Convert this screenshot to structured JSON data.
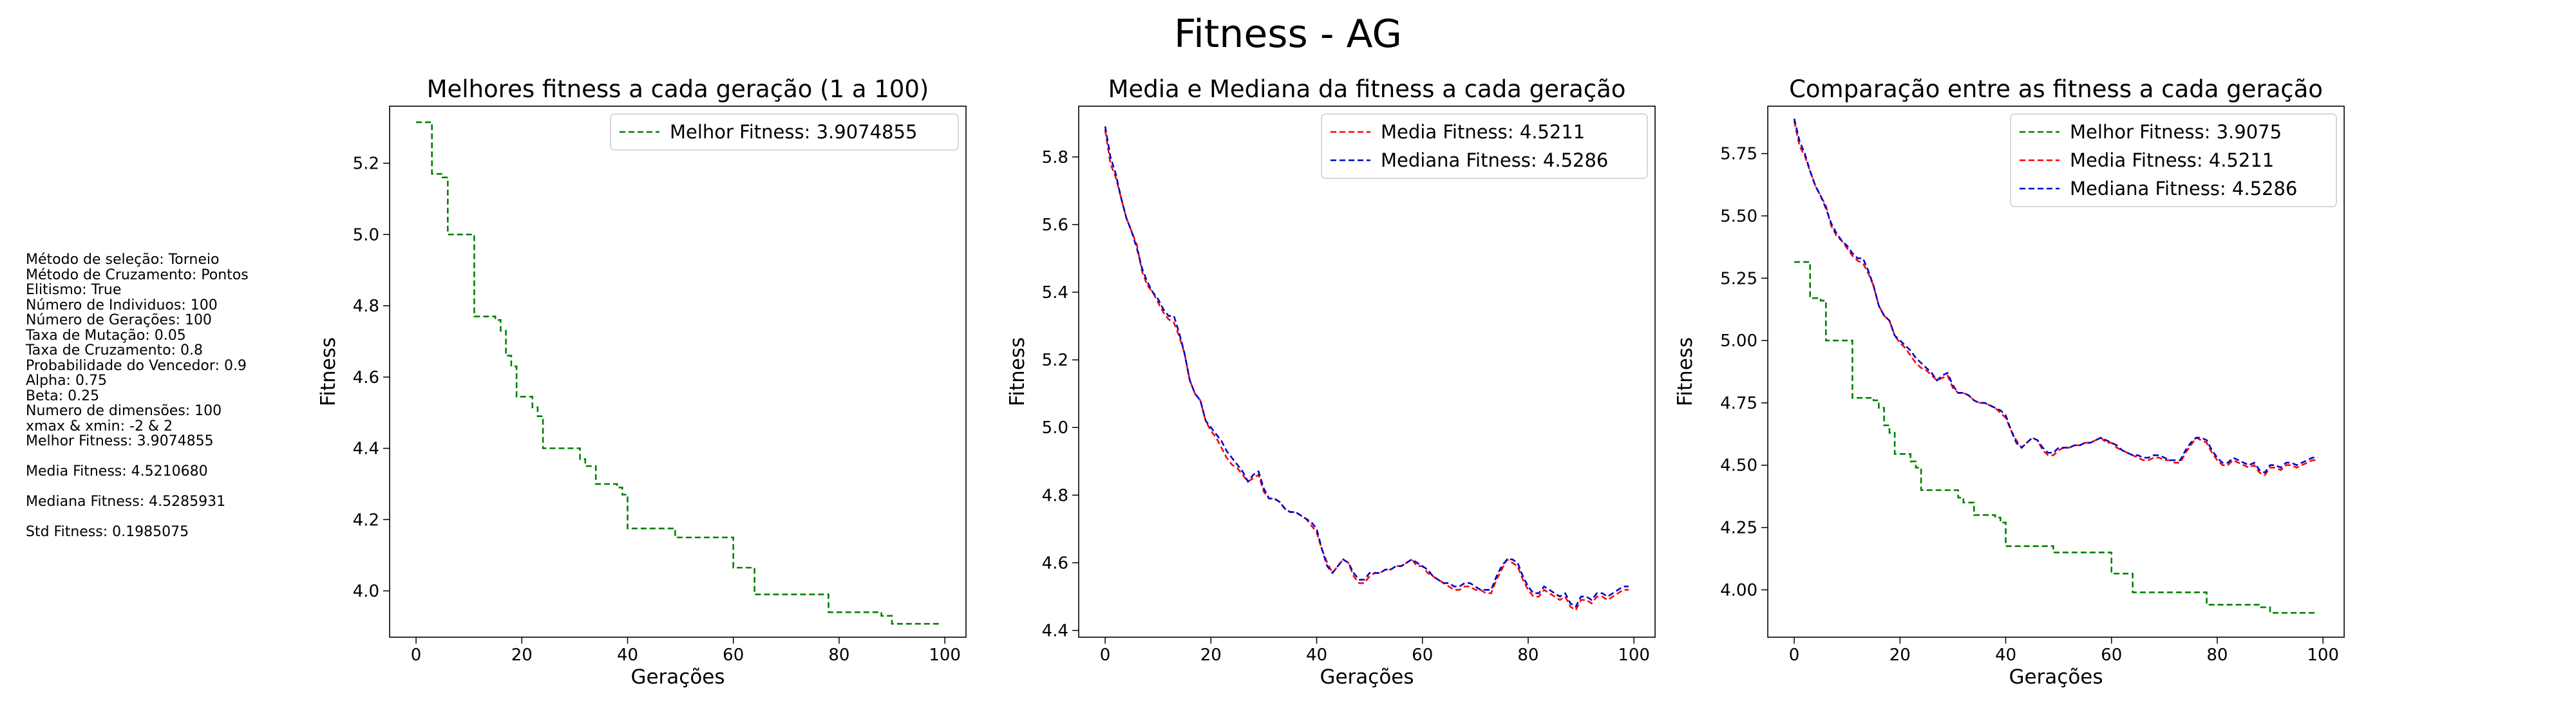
{
  "suptitle": "Fitness - AG",
  "params": {
    "lines": [
      "Método de seleção: Torneio",
      "Método de Cruzamento: Pontos",
      "Elitismo: True",
      "Número de Individuos: 100",
      "Número de Gerações: 100",
      "Taxa de Mutação: 0.05",
      "Taxa de Cruzamento: 0.8",
      "Probabilidade do Vencedor: 0.9",
      "Alpha: 0.75",
      "Beta: 0.25",
      "Numero de dimensões: 100",
      "xmax & xmin: -2 & 2",
      "Melhor Fitness: 3.9074855",
      "",
      "Media Fitness: 4.5210680",
      "",
      "Mediana Fitness: 4.5285931",
      "",
      "Std Fitness: 0.1985075"
    ]
  },
  "colors": {
    "best": "#008000",
    "mean": "#ff0000",
    "median": "#0000cc"
  },
  "chart_data": [
    {
      "type": "line",
      "title": "Melhores fitness a cada geração (1 a 100)",
      "xlabel": "Gerações",
      "ylabel": "Fitness",
      "xlim": [
        -5,
        104
      ],
      "ylim": [
        3.87,
        5.36
      ],
      "xticks": [
        "0",
        "20",
        "40",
        "60",
        "80",
        "100"
      ],
      "xtick_values": [
        0,
        20,
        40,
        60,
        80,
        100
      ],
      "yticks": [
        "4.0",
        "4.2",
        "4.4",
        "4.6",
        "4.8",
        "5.0",
        "5.2"
      ],
      "ytick_values": [
        4.0,
        4.2,
        4.4,
        4.6,
        4.8,
        5.0,
        5.2
      ],
      "legend_position": "top-right",
      "series": [
        {
          "name": "Melhor Fitness: 3.9074855",
          "color": "#008000",
          "key": "best"
        }
      ]
    },
    {
      "type": "line",
      "title": "Media e Mediana da fitness a cada geração",
      "xlabel": "Gerações",
      "ylabel": "Fitness",
      "xlim": [
        -5,
        104
      ],
      "ylim": [
        4.38,
        5.95
      ],
      "xticks": [
        "0",
        "20",
        "40",
        "60",
        "80",
        "100"
      ],
      "xtick_values": [
        0,
        20,
        40,
        60,
        80,
        100
      ],
      "yticks": [
        "4.4",
        "4.6",
        "4.8",
        "5.0",
        "5.2",
        "5.4",
        "5.6",
        "5.8"
      ],
      "ytick_values": [
        4.4,
        4.6,
        4.8,
        5.0,
        5.2,
        5.4,
        5.6,
        5.8
      ],
      "legend_position": "top-right",
      "series": [
        {
          "name": "Media Fitness: 4.5211",
          "color": "#ff0000",
          "key": "mean"
        },
        {
          "name": "Mediana Fitness: 4.5286",
          "color": "#0000cc",
          "key": "median"
        }
      ]
    },
    {
      "type": "line",
      "title": "Comparação entre as fitness a cada geração",
      "xlabel": "Gerações",
      "ylabel": "Fitness",
      "xlim": [
        -5,
        104
      ],
      "ylim": [
        3.81,
        5.94
      ],
      "xticks": [
        "0",
        "20",
        "40",
        "60",
        "80",
        "100"
      ],
      "xtick_values": [
        0,
        20,
        40,
        60,
        80,
        100
      ],
      "yticks": [
        "4.00",
        "4.25",
        "4.50",
        "4.75",
        "5.00",
        "5.25",
        "5.50",
        "5.75"
      ],
      "ytick_values": [
        4.0,
        4.25,
        4.5,
        4.75,
        5.0,
        5.25,
        5.5,
        5.75
      ],
      "legend_position": "top-right",
      "series": [
        {
          "name": "Melhor Fitness: 3.9075",
          "color": "#008000",
          "key": "best"
        },
        {
          "name": "Media Fitness: 4.5211",
          "color": "#ff0000",
          "key": "mean"
        },
        {
          "name": "Mediana Fitness: 4.5286",
          "color": "#0000cc",
          "key": "median"
        }
      ]
    }
  ],
  "series_values": {
    "x": [
      0,
      1,
      2,
      3,
      4,
      5,
      6,
      7,
      8,
      9,
      10,
      11,
      12,
      13,
      14,
      15,
      16,
      17,
      18,
      19,
      20,
      21,
      22,
      23,
      24,
      25,
      26,
      27,
      28,
      29,
      30,
      31,
      32,
      33,
      34,
      35,
      36,
      37,
      38,
      39,
      40,
      41,
      42,
      43,
      44,
      45,
      46,
      47,
      48,
      49,
      50,
      51,
      52,
      53,
      54,
      55,
      56,
      57,
      58,
      59,
      60,
      61,
      62,
      63,
      64,
      65,
      66,
      67,
      68,
      69,
      70,
      71,
      72,
      73,
      74,
      75,
      76,
      77,
      78,
      79,
      80,
      81,
      82,
      83,
      84,
      85,
      86,
      87,
      88,
      89,
      90,
      91,
      92,
      93,
      94,
      95,
      96,
      97,
      98,
      99
    ],
    "best": [
      5.315,
      5.315,
      5.315,
      5.17,
      5.17,
      5.16,
      5.0,
      5.0,
      5.0,
      5.0,
      5.0,
      4.77,
      4.77,
      4.77,
      4.77,
      4.76,
      4.73,
      4.66,
      4.63,
      4.545,
      4.545,
      4.545,
      4.515,
      4.49,
      4.4,
      4.4,
      4.4,
      4.4,
      4.4,
      4.4,
      4.4,
      4.37,
      4.35,
      4.35,
      4.3,
      4.3,
      4.3,
      4.3,
      4.29,
      4.27,
      4.175,
      4.175,
      4.175,
      4.175,
      4.175,
      4.175,
      4.175,
      4.175,
      4.175,
      4.15,
      4.15,
      4.15,
      4.15,
      4.15,
      4.15,
      4.15,
      4.15,
      4.15,
      4.15,
      4.15,
      4.065,
      4.065,
      4.065,
      4.065,
      3.99,
      3.99,
      3.99,
      3.99,
      3.99,
      3.99,
      3.99,
      3.99,
      3.99,
      3.99,
      3.99,
      3.99,
      3.99,
      3.99,
      3.94,
      3.94,
      3.94,
      3.94,
      3.94,
      3.94,
      3.94,
      3.94,
      3.94,
      3.94,
      3.93,
      3.93,
      3.9075,
      3.9075,
      3.9075,
      3.9075,
      3.9075,
      3.9075,
      3.9075,
      3.9075,
      3.9075,
      3.9075
    ],
    "mean": [
      5.88,
      5.78,
      5.74,
      5.68,
      5.62,
      5.58,
      5.54,
      5.46,
      5.42,
      5.4,
      5.37,
      5.34,
      5.32,
      5.31,
      5.27,
      5.22,
      5.14,
      5.1,
      5.08,
      5.02,
      4.99,
      4.97,
      4.94,
      4.91,
      4.89,
      4.88,
      4.86,
      4.84,
      4.85,
      4.86,
      4.81,
      4.79,
      4.79,
      4.78,
      4.76,
      4.75,
      4.75,
      4.74,
      4.73,
      4.71,
      4.69,
      4.64,
      4.6,
      4.57,
      4.59,
      4.61,
      4.6,
      4.56,
      4.54,
      4.54,
      4.56,
      4.57,
      4.57,
      4.58,
      4.58,
      4.59,
      4.59,
      4.6,
      4.61,
      4.59,
      4.59,
      4.57,
      4.56,
      4.55,
      4.54,
      4.53,
      4.52,
      4.52,
      4.53,
      4.53,
      4.52,
      4.52,
      4.51,
      4.51,
      4.55,
      4.58,
      4.61,
      4.6,
      4.59,
      4.55,
      4.52,
      4.5,
      4.5,
      4.52,
      4.51,
      4.5,
      4.49,
      4.5,
      4.47,
      4.46,
      4.49,
      4.49,
      4.48,
      4.5,
      4.5,
      4.49,
      4.5,
      4.51,
      4.52,
      4.52
    ],
    "median": [
      5.89,
      5.8,
      5.75,
      5.68,
      5.62,
      5.58,
      5.53,
      5.47,
      5.43,
      5.4,
      5.38,
      5.35,
      5.33,
      5.33,
      5.28,
      5.22,
      5.14,
      5.1,
      5.08,
      5.02,
      5.0,
      4.98,
      4.96,
      4.93,
      4.91,
      4.89,
      4.87,
      4.84,
      4.86,
      4.87,
      4.82,
      4.79,
      4.79,
      4.78,
      4.76,
      4.75,
      4.75,
      4.74,
      4.73,
      4.72,
      4.7,
      4.64,
      4.59,
      4.57,
      4.59,
      4.61,
      4.6,
      4.57,
      4.55,
      4.55,
      4.57,
      4.57,
      4.57,
      4.58,
      4.58,
      4.59,
      4.59,
      4.6,
      4.61,
      4.6,
      4.59,
      4.58,
      4.56,
      4.55,
      4.54,
      4.54,
      4.53,
      4.53,
      4.54,
      4.54,
      4.53,
      4.52,
      4.52,
      4.52,
      4.56,
      4.59,
      4.61,
      4.61,
      4.6,
      4.56,
      4.53,
      4.51,
      4.51,
      4.53,
      4.52,
      4.51,
      4.5,
      4.51,
      4.48,
      4.47,
      4.5,
      4.5,
      4.49,
      4.51,
      4.51,
      4.5,
      4.51,
      4.52,
      4.53,
      4.53
    ]
  }
}
